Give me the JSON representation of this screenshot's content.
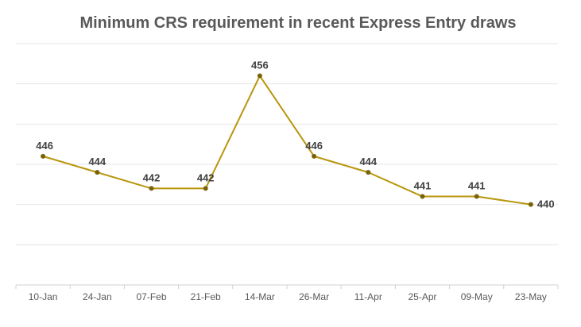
{
  "chart_data": {
    "type": "line",
    "title": "Minimum CRS requirement in recent Express Entry draws",
    "xlabel": "",
    "ylabel": "",
    "categories": [
      "10-Jan",
      "24-Jan",
      "07-Feb",
      "21-Feb",
      "14-Mar",
      "26-Mar",
      "11-Apr",
      "25-Apr",
      "09-May",
      "23-May"
    ],
    "series": [
      {
        "values": [
          446,
          444,
          442,
          442,
          456,
          446,
          444,
          441,
          441,
          440
        ],
        "color": "#b8960c"
      }
    ],
    "ylim": [
      430,
      460
    ],
    "ygrid_step": 5,
    "grid": true,
    "y_tick_labels_shown": false,
    "legend": "none",
    "colors": {
      "line": "#b8960c",
      "marker": "#7a6208",
      "grid": "#e6e6e6",
      "title": "#595959"
    }
  }
}
